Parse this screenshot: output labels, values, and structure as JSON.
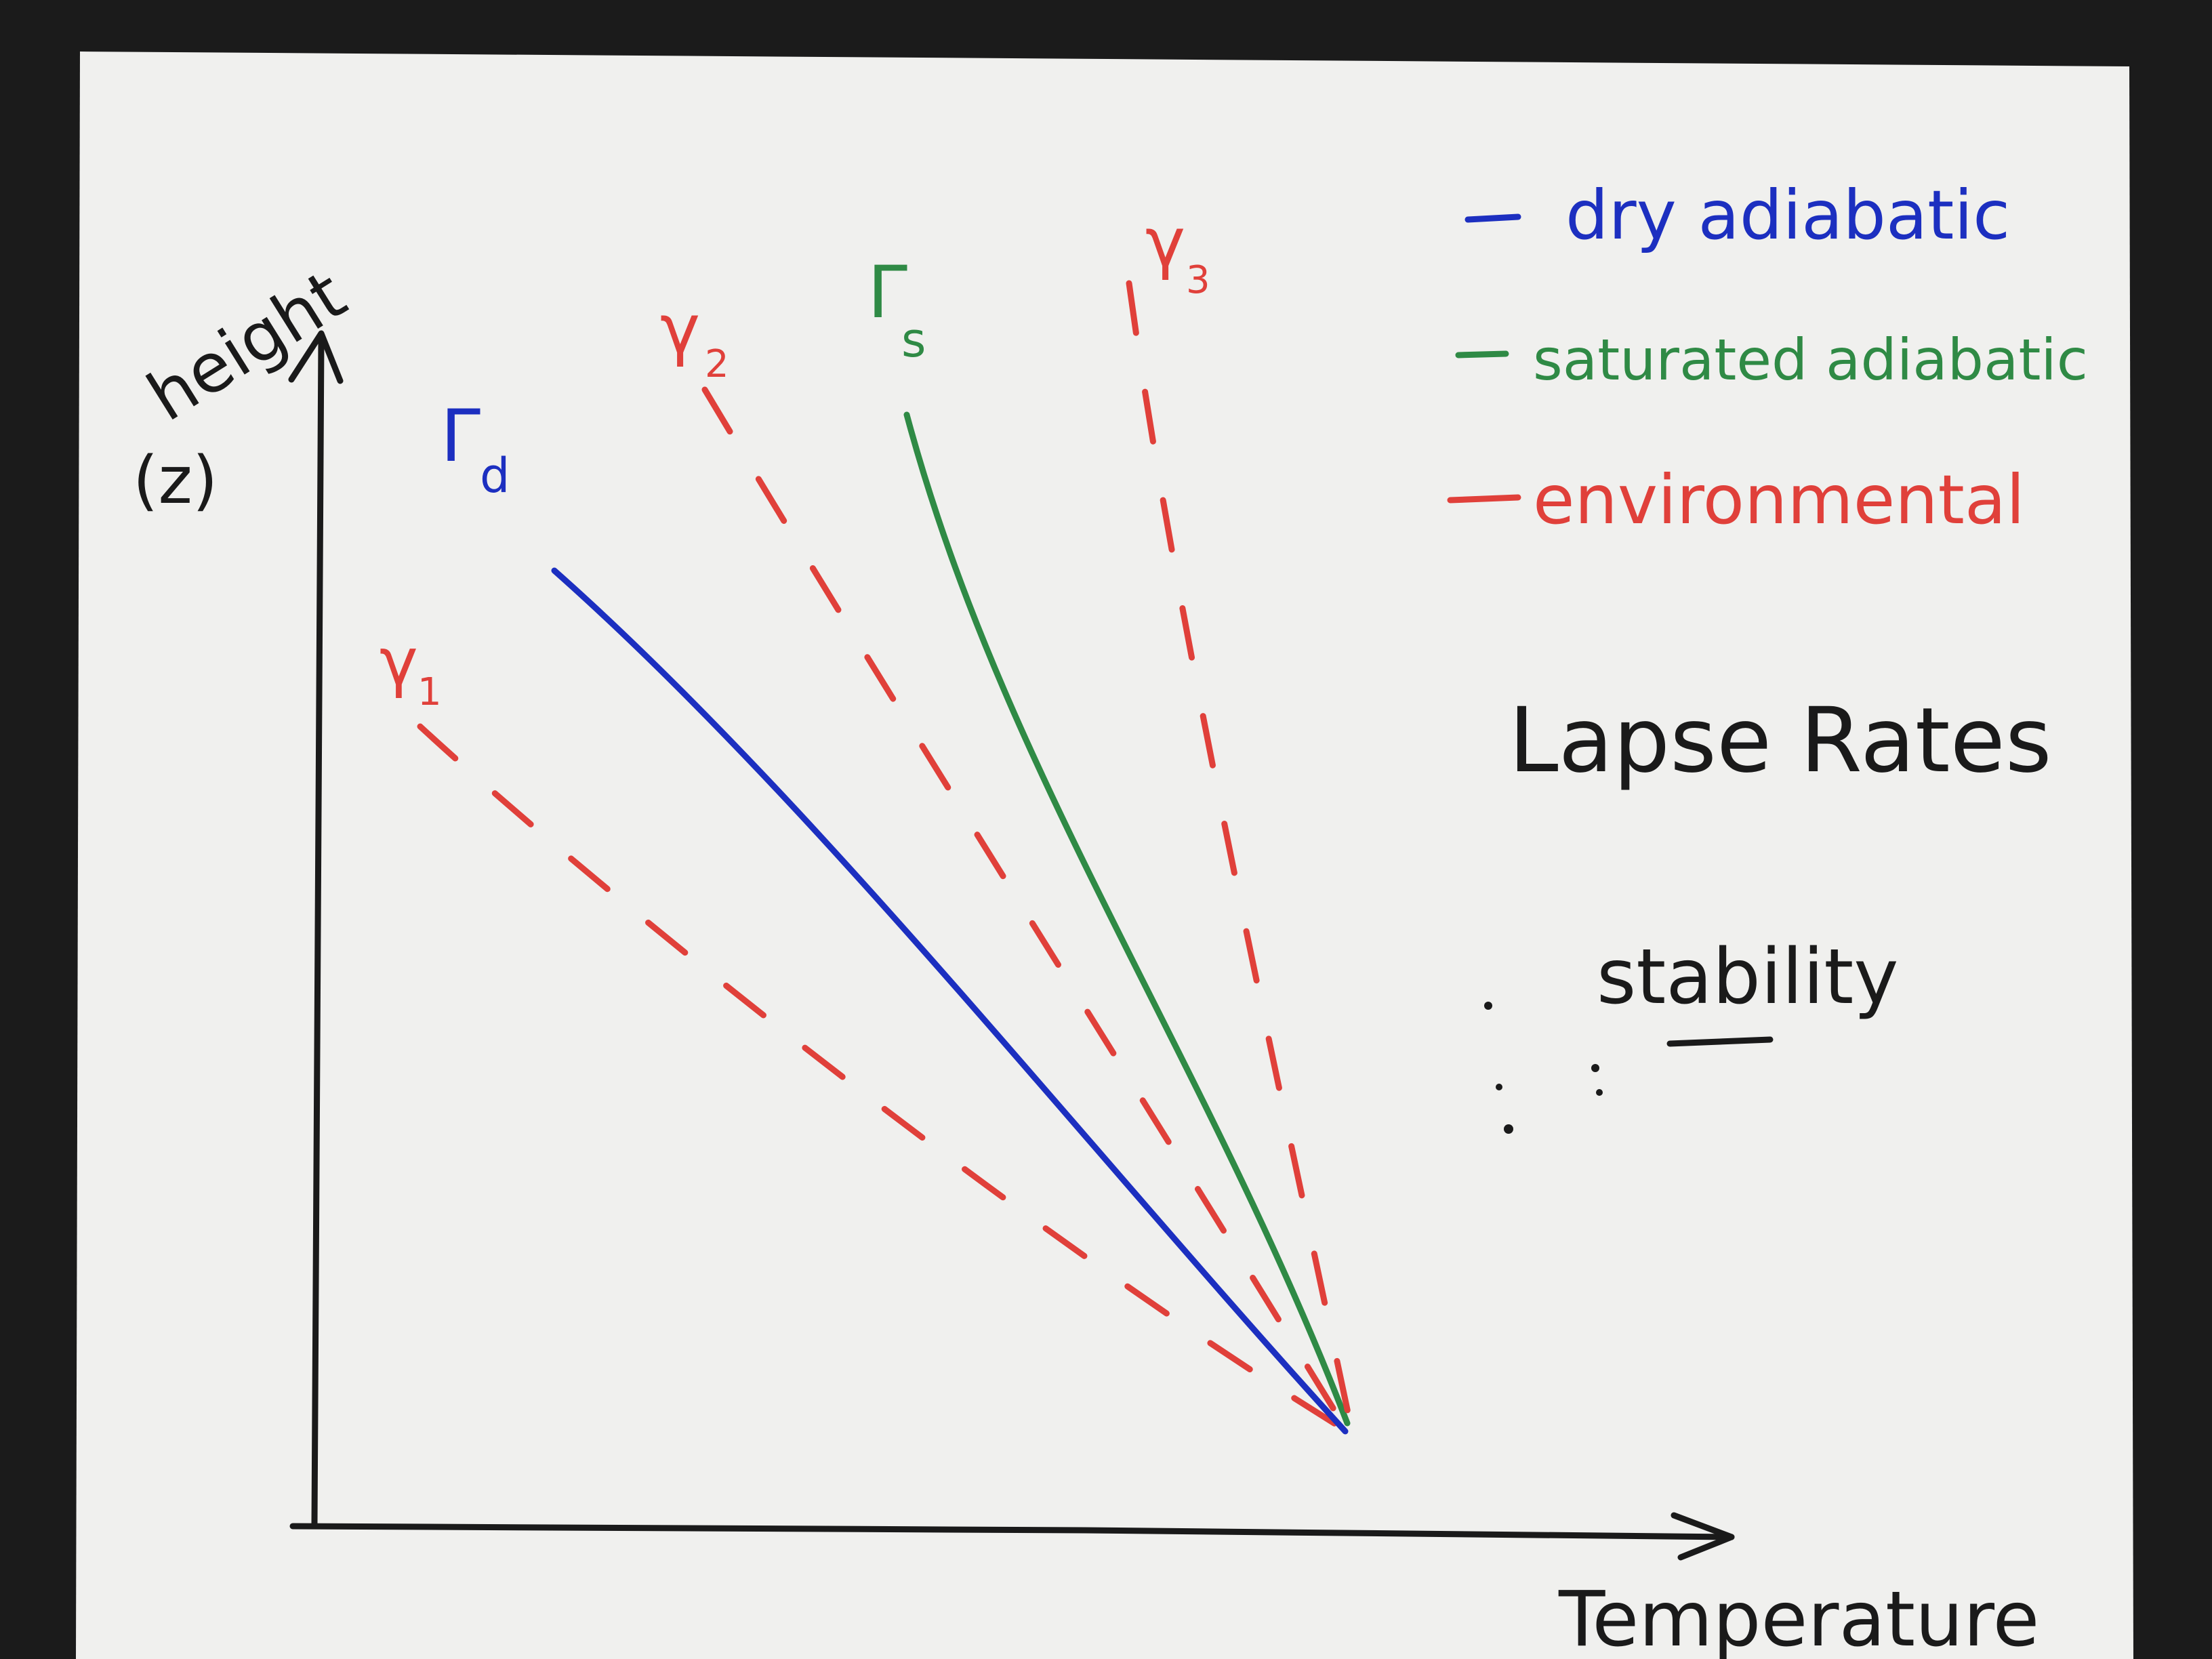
{
  "title": "Lapse Rates",
  "subtitle": "stability",
  "axes": {
    "y_label": "height",
    "y_unit": "(z)",
    "x_label": "Temperature"
  },
  "legend": [
    {
      "key": "dry",
      "label": "dry adiabatic",
      "color": "#1c2fc0",
      "dashed": false
    },
    {
      "key": "saturated",
      "label": "saturated adiabatic",
      "color": "#2f8a45",
      "dashed": false
    },
    {
      "key": "environmental",
      "label": "environmental",
      "color": "#e0403a",
      "dashed": false
    }
  ],
  "lines": [
    {
      "key": "gamma1",
      "label_main": "γ",
      "label_sub": "1",
      "color": "#e0403a",
      "dashed": true
    },
    {
      "key": "Gamma_d",
      "label_main": "Γ",
      "label_sub": "d",
      "color": "#1c2fc0",
      "dashed": false
    },
    {
      "key": "gamma2",
      "label_main": "γ",
      "label_sub": "2",
      "color": "#e0403a",
      "dashed": true
    },
    {
      "key": "Gamma_s",
      "label_main": "Γ",
      "label_sub": "s",
      "color": "#2f8a45",
      "dashed": false
    },
    {
      "key": "gamma3",
      "label_main": "γ",
      "label_sub": "3",
      "color": "#e0403a",
      "dashed": true
    }
  ],
  "colors": {
    "paper": "#f0f0ee",
    "background": "#1b1b1b",
    "ink": "#1a1a1a",
    "dry": "#1c2fc0",
    "saturated": "#2f8a45",
    "environmental": "#e0403a"
  }
}
